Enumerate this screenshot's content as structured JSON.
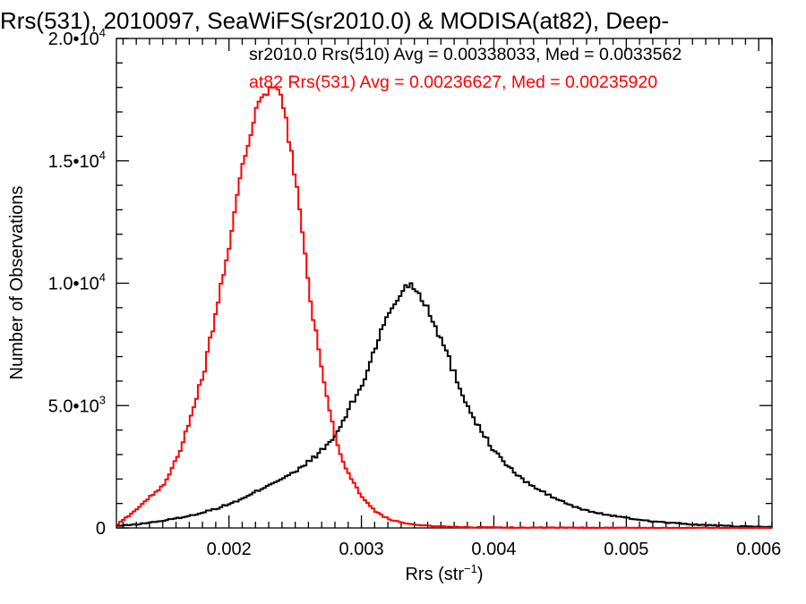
{
  "chart_data": {
    "type": "line",
    "title": "Rrs(531), 2010097, SeaWiFS(sr2010.0) & MODISA(at82), Deep-",
    "xlabel": "Rrs (str",
    "xlabel_sup": "−1",
    "xlabel_end": ")",
    "ylabel": "Number of Observations",
    "xlim": [
      0.00115,
      0.0061
    ],
    "ylim": [
      0,
      20000
    ],
    "x_ticks": [
      {
        "value": 0.002,
        "label": "0.002"
      },
      {
        "value": 0.003,
        "label": "0.003"
      },
      {
        "value": 0.004,
        "label": "0.004"
      },
      {
        "value": 0.005,
        "label": "0.005"
      },
      {
        "value": 0.006,
        "label": "0.006"
      }
    ],
    "y_ticks": [
      {
        "value": 0,
        "label": "0",
        "sup": ""
      },
      {
        "value": 5000,
        "label": "5.0•10",
        "sup": "3"
      },
      {
        "value": 10000,
        "label": "1.0•10",
        "sup": "4"
      },
      {
        "value": 15000,
        "label": "1.5•10",
        "sup": "4"
      },
      {
        "value": 20000,
        "label": "2.0•10",
        "sup": "4"
      }
    ],
    "grid": false,
    "legend_position": "top-right",
    "series": [
      {
        "name": "sr2010.0 Rrs(510) Avg = 0.00338033, Med = 0.0033562",
        "color": "#000000",
        "x": [
          0.00115,
          0.0013,
          0.0015,
          0.0017,
          0.0019,
          0.0021,
          0.0023,
          0.0025,
          0.0027,
          0.0028,
          0.0029,
          0.003,
          0.0031,
          0.0032,
          0.0033,
          0.00335,
          0.0034,
          0.0035,
          0.0036,
          0.0037,
          0.0038,
          0.0039,
          0.004,
          0.0041,
          0.0042,
          0.0043,
          0.0044,
          0.0045,
          0.0046,
          0.0047,
          0.0048,
          0.005,
          0.0052,
          0.0055,
          0.0058,
          0.0061
        ],
        "y": [
          80,
          150,
          300,
          500,
          800,
          1200,
          1800,
          2300,
          3200,
          3800,
          4900,
          5900,
          7500,
          8800,
          9700,
          10000,
          9800,
          8900,
          7600,
          6200,
          4900,
          3900,
          3100,
          2500,
          2000,
          1650,
          1350,
          1100,
          850,
          700,
          580,
          400,
          260,
          140,
          70,
          40
        ]
      },
      {
        "name": "at82 Rrs(531) Avg = 0.00236627, Med = 0.00235920",
        "color": "#ff0000",
        "x": [
          0.00115,
          0.0013,
          0.0015,
          0.0016,
          0.0017,
          0.0018,
          0.0019,
          0.002,
          0.0021,
          0.0022,
          0.0023,
          0.00235,
          0.0024,
          0.0025,
          0.0026,
          0.0027,
          0.0028,
          0.0029,
          0.003,
          0.0031,
          0.0032,
          0.0033,
          0.0034,
          0.0036,
          0.0038,
          0.004,
          0.0045,
          0.005,
          0.0061
        ],
        "y": [
          150,
          800,
          1800,
          2900,
          4400,
          6400,
          9000,
          11800,
          15000,
          17200,
          17900,
          18000,
          17300,
          14000,
          9600,
          6000,
          3500,
          2100,
          1200,
          650,
          350,
          200,
          120,
          60,
          30,
          20,
          10,
          5,
          0
        ]
      }
    ]
  }
}
